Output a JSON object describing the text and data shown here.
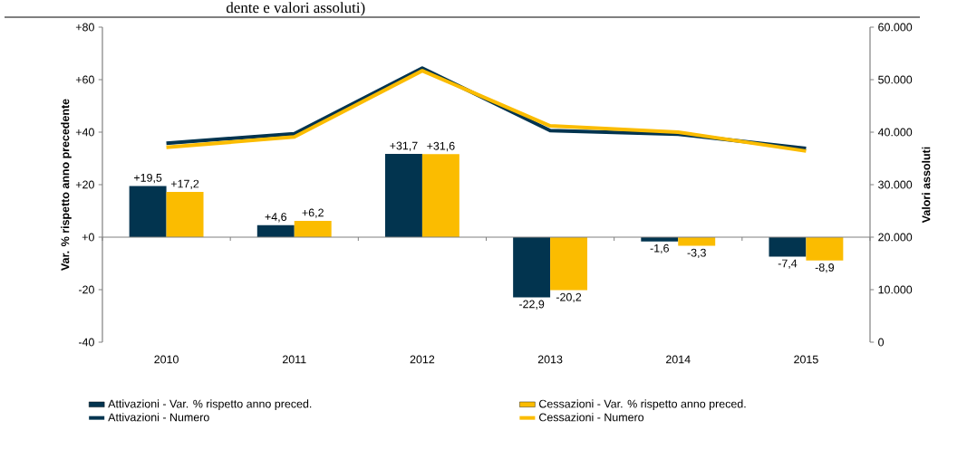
{
  "chart_data": {
    "type": "bar",
    "title": "dente e valori assoluti)",
    "ylabel": "Var. % rispetto anno precedente",
    "y2label": "Valori assoluti",
    "categories": [
      "2010",
      "2011",
      "2012",
      "2013",
      "2014",
      "2015"
    ],
    "series": [
      {
        "name": "Attivazioni - Var. % rispetto anno preced.",
        "color": "#02344f",
        "values": [
          19.5,
          4.6,
          31.7,
          -22.9,
          -1.6,
          -7.4
        ],
        "value_labels": [
          "+19,5",
          "+4,6",
          "+31,7",
          "-22,9",
          "-1,6",
          "-7,4"
        ]
      },
      {
        "name": "Cessazioni - Var. % rispetto anno preced.",
        "color": "#fbbc00",
        "values": [
          17.2,
          6.2,
          31.6,
          -20.2,
          -3.3,
          -8.9
        ],
        "value_labels": [
          "+17,2",
          "+6,2",
          "+31,6",
          "-20,2",
          "-3,3",
          "-8,9"
        ]
      },
      {
        "name": "Attivazioni - Numero",
        "type": "line",
        "axis": "y2",
        "color": "#02344f",
        "values": [
          37900,
          39700,
          52200,
          40300,
          39600,
          36900
        ]
      },
      {
        "name": "Cessazioni - Numero",
        "type": "line",
        "axis": "y2",
        "color": "#fbbc00",
        "values": [
          37100,
          39100,
          51700,
          41200,
          40000,
          36400
        ]
      }
    ],
    "ylim": [
      -40,
      80
    ],
    "yticks": [
      {
        "value": -40,
        "label": "-40"
      },
      {
        "value": -20,
        "label": "-20"
      },
      {
        "value": 0,
        "label": "+0"
      },
      {
        "value": 20,
        "label": "+20"
      },
      {
        "value": 40,
        "label": "+40"
      },
      {
        "value": 60,
        "label": "+60"
      },
      {
        "value": 80,
        "label": "+80"
      }
    ],
    "y2lim": [
      0,
      60000
    ],
    "y2ticks": [
      {
        "value": 0,
        "label": "0"
      },
      {
        "value": 10000,
        "label": "10.000"
      },
      {
        "value": 20000,
        "label": "20.000"
      },
      {
        "value": 30000,
        "label": "30.000"
      },
      {
        "value": 40000,
        "label": "40.000"
      },
      {
        "value": 50000,
        "label": "50.000"
      },
      {
        "value": 60000,
        "label": "60.000"
      }
    ],
    "legend": "bottom"
  }
}
